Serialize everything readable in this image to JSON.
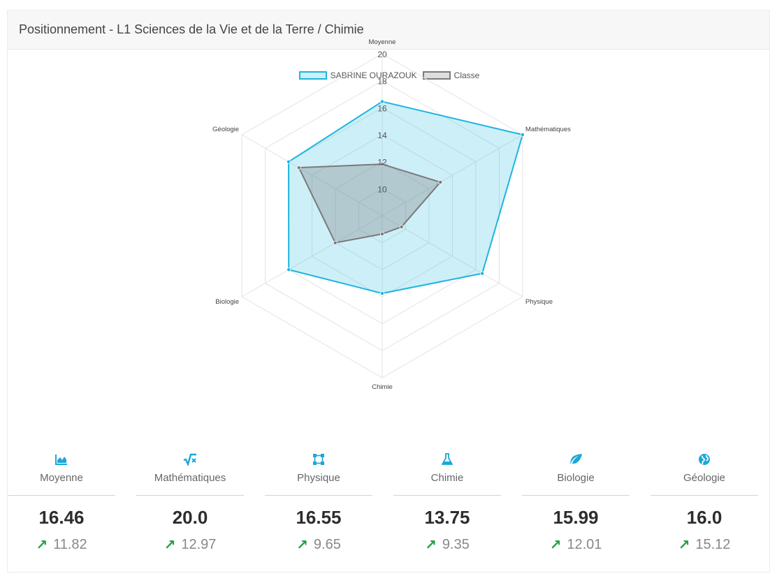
{
  "header": {
    "title": "Positionnement - L1 Sciences de la Vie et de la Terre / Chimie"
  },
  "colors": {
    "student": "#1cb5e0",
    "classe": "#7a7a7a",
    "icon": "#1ba7d8",
    "up": "#22a040"
  },
  "chart_data": {
    "type": "radar",
    "legend_placement": "top",
    "axes": [
      "Moyenne",
      "Mathématiques",
      "Physique",
      "Chimie",
      "Biologie",
      "Géologie"
    ],
    "r_range": [
      8,
      20
    ],
    "ticks": [
      "10",
      "12",
      "14",
      "16",
      "18",
      "20"
    ],
    "tick_values": [
      10,
      12,
      14,
      16,
      18,
      20
    ],
    "series": [
      {
        "name": "SABRINE OURAZOUK",
        "values": [
          16.46,
          20.0,
          16.55,
          13.75,
          15.99,
          16.0
        ]
      },
      {
        "name": "Classe",
        "values": [
          11.82,
          12.97,
          9.65,
          9.35,
          12.01,
          15.12
        ]
      }
    ]
  },
  "stats": [
    {
      "icon": "area-chart-icon",
      "label": "Moyenne",
      "value": "16.46",
      "classe": "11.82",
      "trend": "up"
    },
    {
      "icon": "sqrt-icon",
      "label": "Mathématiques",
      "value": "20.0",
      "classe": "12.97",
      "trend": "up"
    },
    {
      "icon": "vector-square-icon",
      "label": "Physique",
      "value": "16.55",
      "classe": "9.65",
      "trend": "up"
    },
    {
      "icon": "flask-icon",
      "label": "Chimie",
      "value": "13.75",
      "classe": "9.35",
      "trend": "up"
    },
    {
      "icon": "leaf-icon",
      "label": "Biologie",
      "value": "15.99",
      "classe": "12.01",
      "trend": "up"
    },
    {
      "icon": "globe-icon",
      "label": "Géologie",
      "value": "16.0",
      "classe": "15.12",
      "trend": "up"
    }
  ]
}
